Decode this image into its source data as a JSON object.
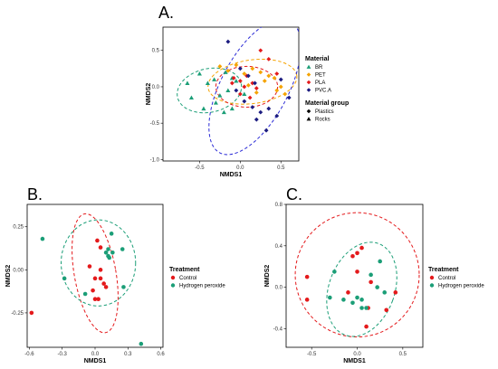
{
  "chart_data": [
    {
      "panel": "A.",
      "type": "scatter",
      "xlabel": "NMDS1",
      "ylabel": "NMDS2",
      "xlim": [
        -0.95,
        0.72
      ],
      "ylim": [
        -1.02,
        0.82
      ],
      "xticks": [
        "-0.5",
        "0.0",
        "0.5"
      ],
      "xtick_values": [
        -0.5,
        0.0,
        0.5
      ],
      "yticks": [
        "0.5",
        "0.0",
        "-0.5",
        "-1.0"
      ],
      "ytick_values": [
        0.5,
        0.0,
        -0.5,
        -1.0
      ],
      "grid": false,
      "legend": {
        "position": "right",
        "color_title": "Material",
        "shape_title": "Material group",
        "shapes": [
          {
            "label": "Plastics",
            "shape": "diamond"
          },
          {
            "label": "Rocks",
            "shape": "triangle"
          }
        ]
      },
      "series": [
        {
          "name": "BR",
          "color": "#1b9e77",
          "shape": "triangle",
          "points": [
            [
              -0.6,
              -0.15
            ],
            [
              -0.45,
              -0.3
            ],
            [
              -0.3,
              -0.22
            ],
            [
              -0.2,
              -0.35
            ],
            [
              -0.1,
              -0.3
            ],
            [
              -0.25,
              -0.12
            ],
            [
              -0.4,
              0.05
            ],
            [
              -0.15,
              -0.05
            ],
            [
              -0.05,
              0.08
            ],
            [
              -0.65,
              0.05
            ],
            [
              -0.5,
              0.18
            ],
            [
              -0.32,
              0.1
            ],
            [
              -0.18,
              0.2
            ],
            [
              -0.1,
              0.12
            ],
            [
              0.05,
              -0.1
            ]
          ]
        },
        {
          "name": "PET",
          "color": "#f5a300",
          "shape": "diamond",
          "points": [
            [
              -0.25,
              0.28
            ],
            [
              -0.15,
              0.22
            ],
            [
              -0.05,
              0.3
            ],
            [
              0.05,
              0.18
            ],
            [
              0.15,
              0.25
            ],
            [
              0.25,
              0.2
            ],
            [
              0.35,
              0.15
            ],
            [
              0.42,
              0.12
            ],
            [
              0.3,
              0.08
            ],
            [
              0.45,
              -0.05
            ],
            [
              0.5,
              0.0
            ],
            [
              0.2,
              -0.08
            ],
            [
              0.1,
              0.02
            ],
            [
              0.55,
              -0.1
            ]
          ]
        },
        {
          "name": "PLA",
          "color": "#e41a1c",
          "shape": "diamond",
          "points": [
            [
              -0.1,
              0.05
            ],
            [
              0.0,
              0.08
            ],
            [
              0.08,
              0.15
            ],
            [
              0.05,
              0.0
            ],
            [
              0.0,
              -0.1
            ],
            [
              -0.08,
              0.12
            ],
            [
              0.15,
              0.05
            ],
            [
              0.25,
              0.5
            ],
            [
              0.35,
              0.38
            ],
            [
              0.45,
              0.18
            ],
            [
              0.2,
              -0.02
            ],
            [
              0.12,
              -0.15
            ]
          ]
        },
        {
          "name": "PVC.A",
          "color": "#1c1c80",
          "shape": "diamond",
          "points": [
            [
              -0.15,
              0.62
            ],
            [
              0.0,
              0.25
            ],
            [
              0.1,
              0.15
            ],
            [
              0.18,
              0.05
            ],
            [
              0.25,
              -0.35
            ],
            [
              0.35,
              -0.3
            ],
            [
              0.45,
              -0.4
            ],
            [
              0.2,
              -0.45
            ],
            [
              0.32,
              -0.6
            ],
            [
              0.15,
              -0.28
            ],
            [
              0.6,
              -0.15
            ],
            [
              0.5,
              0.1
            ],
            [
              0.05,
              -0.2
            ],
            [
              -0.05,
              -0.05
            ]
          ]
        }
      ],
      "ellipses": [
        {
          "series": "BR",
          "color": "#1b9e77",
          "cx": -0.38,
          "cy": -0.05,
          "rx": 0.4,
          "ry": 0.3,
          "angle": -12
        },
        {
          "series": "PET",
          "color": "#f5a300",
          "cx": 0.15,
          "cy": 0.07,
          "rx": 0.55,
          "ry": 0.3,
          "angle": -8
        },
        {
          "series": "PLA",
          "color": "#e41a1c",
          "cx": 0.08,
          "cy": 0.0,
          "rx": 0.38,
          "ry": 0.28,
          "angle": 0
        },
        {
          "series": "PVC.A",
          "color": "#2b2bd6",
          "cx": 0.18,
          "cy": 0.0,
          "rx": 0.92,
          "ry": 0.46,
          "angle": -62
        }
      ]
    },
    {
      "panel": "B.",
      "type": "scatter",
      "xlabel": "NMDS1",
      "ylabel": "NMDS2",
      "xlim": [
        -0.62,
        0.62
      ],
      "ylim": [
        -0.45,
        0.38
      ],
      "xticks": [
        "-0.6",
        "-0.3",
        "0.0",
        "0.3",
        "0.6"
      ],
      "xtick_values": [
        -0.6,
        -0.3,
        0.0,
        0.3,
        0.6
      ],
      "yticks": [
        "0.25",
        "0.00",
        "-0.25"
      ],
      "ytick_values": [
        0.25,
        0.0,
        -0.25
      ],
      "grid": false,
      "legend": {
        "position": "right",
        "color_title": "Treatment"
      },
      "series": [
        {
          "name": "Control",
          "color": "#e41a1c",
          "points": [
            [
              -0.58,
              -0.25
            ],
            [
              0.02,
              0.17
            ],
            [
              0.05,
              0.13
            ],
            [
              -0.05,
              0.02
            ],
            [
              0.0,
              -0.05
            ],
            [
              0.05,
              -0.05
            ],
            [
              0.08,
              -0.08
            ],
            [
              -0.02,
              -0.12
            ],
            [
              0.0,
              -0.17
            ],
            [
              0.03,
              -0.17
            ],
            [
              0.1,
              -0.1
            ],
            [
              0.05,
              0.0
            ]
          ]
        },
        {
          "name": "Hydrogen peroxide",
          "color": "#1b9e77",
          "points": [
            [
              -0.48,
              0.18
            ],
            [
              0.15,
              0.21
            ],
            [
              0.12,
              0.12
            ],
            [
              0.12,
              0.08
            ],
            [
              0.1,
              0.1
            ],
            [
              0.16,
              0.1
            ],
            [
              0.13,
              0.07
            ],
            [
              0.25,
              0.12
            ],
            [
              0.26,
              -0.1
            ],
            [
              -0.28,
              -0.05
            ],
            [
              -0.09,
              -0.14
            ],
            [
              0.42,
              -0.43
            ]
          ]
        }
      ],
      "ellipses": [
        {
          "series": "Control",
          "color": "#e41a1c",
          "cx": 0.0,
          "cy": -0.02,
          "rx": 0.19,
          "ry": 0.35,
          "angle": -10
        },
        {
          "series": "Hydrogen peroxide",
          "color": "#1b9e77",
          "cx": 0.03,
          "cy": 0.04,
          "rx": 0.34,
          "ry": 0.25,
          "angle": 0
        }
      ]
    },
    {
      "panel": "C.",
      "type": "scatter",
      "xlabel": "NMDS1",
      "ylabel": "NMDS2",
      "xlim": [
        -0.78,
        0.72
      ],
      "ylim": [
        -0.58,
        0.8
      ],
      "xticks": [
        "-0.5",
        "0.0",
        "0.5"
      ],
      "xtick_values": [
        -0.5,
        0.0,
        0.5
      ],
      "yticks": [
        "0.8",
        "0.4",
        "0.0",
        "-0.4"
      ],
      "ytick_values": [
        0.8,
        0.4,
        0.0,
        -0.4
      ],
      "grid": false,
      "legend": {
        "position": "right",
        "color_title": "Treatment"
      },
      "series": [
        {
          "name": "Control",
          "color": "#e41a1c",
          "points": [
            [
              -0.55,
              0.1
            ],
            [
              -0.55,
              -0.12
            ],
            [
              -0.05,
              0.3
            ],
            [
              0.0,
              0.33
            ],
            [
              0.05,
              0.38
            ],
            [
              0.15,
              0.05
            ],
            [
              0.42,
              -0.05
            ],
            [
              0.32,
              -0.22
            ],
            [
              0.1,
              -0.38
            ],
            [
              -0.1,
              -0.05
            ],
            [
              0.0,
              0.15
            ],
            [
              0.12,
              -0.2
            ]
          ]
        },
        {
          "name": "Hydrogen peroxide",
          "color": "#1b9e77",
          "points": [
            [
              -0.25,
              0.15
            ],
            [
              -0.3,
              -0.1
            ],
            [
              -0.05,
              -0.15
            ],
            [
              0.0,
              -0.1
            ],
            [
              0.05,
              -0.12
            ],
            [
              0.1,
              -0.2
            ],
            [
              0.15,
              0.12
            ],
            [
              0.25,
              0.25
            ],
            [
              0.22,
              0.0
            ],
            [
              0.3,
              -0.05
            ],
            [
              -0.15,
              -0.12
            ],
            [
              0.05,
              -0.2
            ]
          ]
        }
      ],
      "ellipses": [
        {
          "series": "Control",
          "color": "#e41a1c",
          "cx": 0.0,
          "cy": 0.12,
          "rx": 0.68,
          "ry": 0.6,
          "angle": 0
        },
        {
          "series": "Hydrogen peroxide",
          "color": "#1b9e77",
          "cx": 0.05,
          "cy": -0.02,
          "rx": 0.36,
          "ry": 0.47,
          "angle": 20
        }
      ]
    }
  ]
}
